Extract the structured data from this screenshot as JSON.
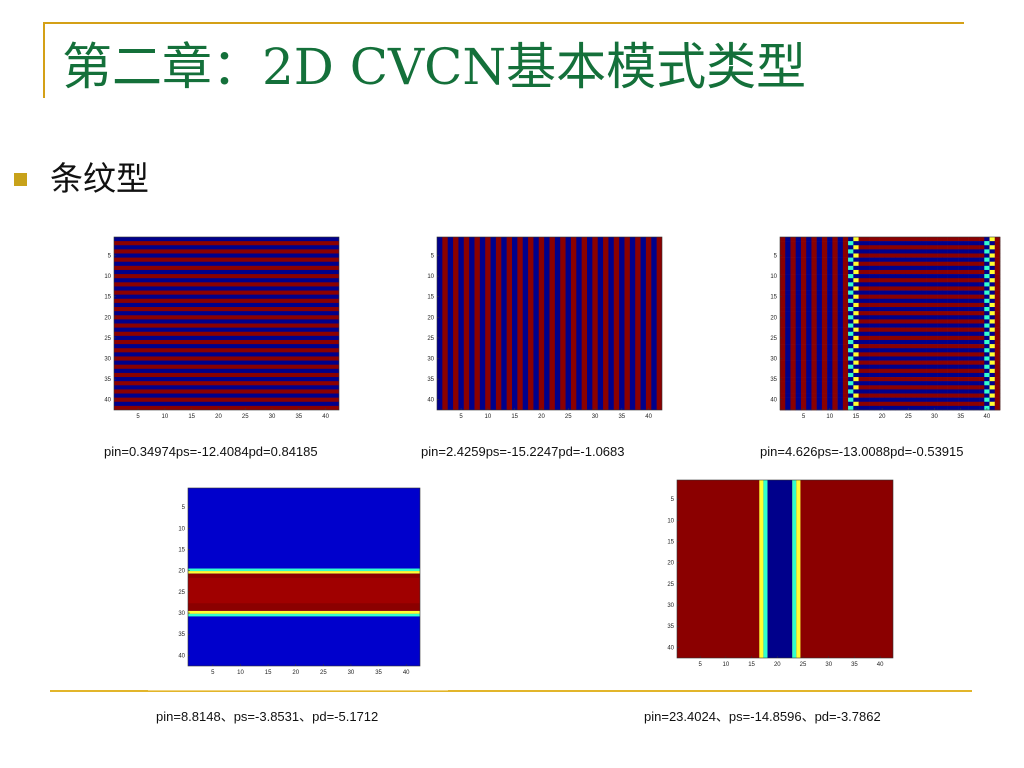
{
  "slide": {
    "title": "第二章：2D CVCN基本模式类型",
    "bullet": "条纹型"
  },
  "colors": {
    "title": "#14703a",
    "rule": "#d4a017",
    "map_dark_red": "#8b0000",
    "map_dark_blue": "#00008b",
    "map_blue": "#0000cc",
    "map_cyan": "#33ffcc",
    "map_yellow": "#ffff33"
  },
  "plots": [
    {
      "caption": "pin=0.34974ps=-12.4084pd=0.84185",
      "pattern": "horizontal-stripes"
    },
    {
      "caption": "pin=2.4259ps=-15.2247pd=-1.0683",
      "pattern": "vertical-stripes"
    },
    {
      "caption": "pin=4.626ps=-13.0088pd=-0.53915",
      "pattern": "mixed-stripes"
    },
    {
      "caption": "pin=8.8148、ps=-3.8531、pd=-5.1712",
      "pattern": "horizontal-band"
    },
    {
      "caption": "pin=23.4024、ps=-14.8596、pd=-3.7862",
      "pattern": "vertical-band"
    }
  ],
  "chart_data": [
    {
      "type": "heatmap",
      "xticks": [
        "5",
        "10",
        "15",
        "20",
        "25",
        "30",
        "35",
        "40"
      ],
      "yticks": [
        "5",
        "10",
        "15",
        "20",
        "25",
        "30",
        "35",
        "40"
      ],
      "xlim": [
        1,
        42
      ],
      "ylim": [
        1,
        42
      ]
    },
    {
      "type": "heatmap",
      "xticks": [
        "5",
        "10",
        "15",
        "20",
        "25",
        "30",
        "35",
        "40"
      ],
      "yticks": [
        "5",
        "10",
        "15",
        "20",
        "25",
        "30",
        "35",
        "40"
      ],
      "xlim": [
        1,
        42
      ],
      "ylim": [
        1,
        42
      ]
    },
    {
      "type": "heatmap",
      "xticks": [
        "5",
        "10",
        "15",
        "20",
        "25",
        "30",
        "35",
        "40"
      ],
      "yticks": [
        "5",
        "10",
        "15",
        "20",
        "25",
        "30",
        "35",
        "40"
      ],
      "xlim": [
        1,
        42
      ],
      "ylim": [
        1,
        42
      ]
    },
    {
      "type": "heatmap",
      "xticks": [
        "5",
        "10",
        "15",
        "20",
        "25",
        "30",
        "35",
        "40"
      ],
      "yticks": [
        "5",
        "10",
        "15",
        "20",
        "25",
        "30",
        "35",
        "40"
      ],
      "xlim": [
        1,
        42
      ],
      "ylim": [
        1,
        42
      ],
      "band_rows": [
        20,
        30
      ]
    },
    {
      "type": "heatmap",
      "xticks": [
        "5",
        "10",
        "15",
        "20",
        "25",
        "30",
        "35",
        "40"
      ],
      "yticks": [
        "5",
        "10",
        "15",
        "20",
        "25",
        "30",
        "35",
        "40"
      ],
      "xlim": [
        1,
        42
      ],
      "ylim": [
        1,
        42
      ],
      "band_cols": [
        17,
        24
      ]
    }
  ]
}
